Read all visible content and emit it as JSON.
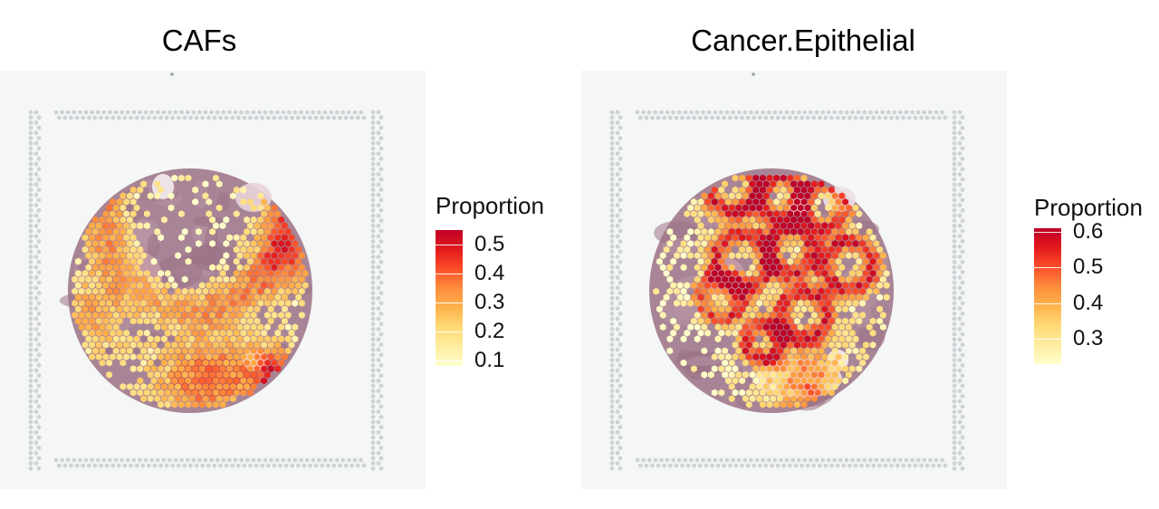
{
  "chart_data": [
    {
      "type": "heatmap",
      "title": "CAFs",
      "legend": {
        "title": "Proportion",
        "ticks": [
          "0.5",
          "0.4",
          "0.3",
          "0.2",
          "0.1"
        ],
        "range": [
          0.08,
          0.55
        ],
        "placement": "right"
      },
      "colors": [
        "#ffffcc",
        "#ffeda0",
        "#fed976",
        "#feb24c",
        "#fd8d3c",
        "#fc4e2a",
        "#e31a1c",
        "#bd0026"
      ]
    },
    {
      "type": "heatmap",
      "title": "Cancer.Epithelial",
      "legend": {
        "title": "Proportion",
        "ticks": [
          "0.6",
          "0.5",
          "0.4",
          "0.3"
        ],
        "range": [
          0.23,
          0.61
        ],
        "placement": "right"
      },
      "colors": [
        "#ffffcc",
        "#ffeda0",
        "#fed976",
        "#feb24c",
        "#fd8d3c",
        "#fc4e2a",
        "#e31a1c",
        "#bd0026"
      ]
    }
  ]
}
